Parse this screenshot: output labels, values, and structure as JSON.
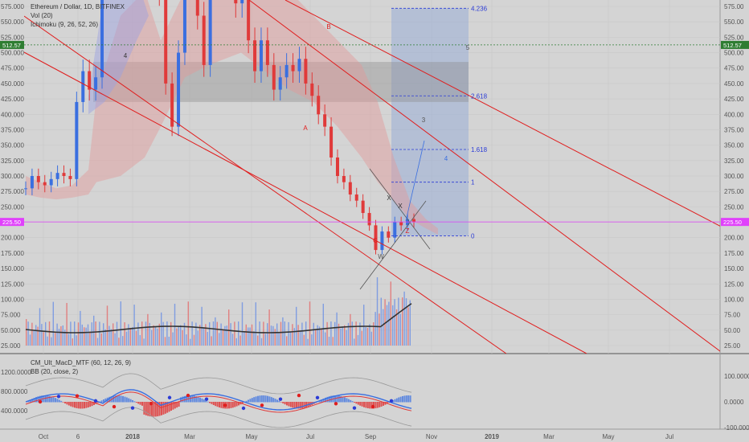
{
  "chart_data": {
    "type": "line",
    "title": "Ethereum / Dollar, 1D, BITFINEX",
    "indicators": [
      "Vol (20)",
      "Ichimoku (9, 26, 52, 26)"
    ],
    "lower_indicators": [
      "CM_Ult_MacD_MTF (60, 12, 26, 9)",
      "BB (20, close, 2)"
    ],
    "price_axis": {
      "ticks": [
        "575.00",
        "550.00",
        "525.00",
        "500.00",
        "475.00",
        "450.00",
        "425.00",
        "400.00",
        "375.00",
        "350.00",
        "325.00",
        "300.00",
        "275.00",
        "250.00",
        "225.00",
        "200.00",
        "175.00",
        "150.00",
        "125.00",
        "100.00",
        "75.00",
        "50.00",
        "25.00"
      ],
      "range": [
        12.5,
        582
      ]
    },
    "left_volume_ticks": [
      "575.000",
      "550.000",
      "525.000",
      "500.000",
      "475.000",
      "450.000",
      "425.000",
      "400.000",
      "375.000",
      "350.000",
      "325.000",
      "300.000",
      "275.000",
      "250.000",
      "225.000",
      "200.000",
      "175.000",
      "150.000",
      "125.000",
      "100.000",
      "75.000",
      "50.000",
      "25.000"
    ],
    "macd_axis": {
      "right_ticks": [
        "100.0000",
        "0.0000",
        "-100.0000"
      ],
      "left_ticks": [
        "1200.0000",
        "800.0000",
        "400.0000"
      ]
    },
    "x_axis_labels": [
      "Oct",
      "6",
      "2018",
      "Mar",
      "May",
      "Jul",
      "Sep",
      "Nov",
      "2019",
      "Mar",
      "May",
      "Jul"
    ],
    "price_markers": [
      {
        "value": 512.57,
        "label": "512.57",
        "color": "#2e7d32"
      },
      {
        "value": 225.5,
        "label": "225.50",
        "color": "#e040fb"
      }
    ],
    "fib_levels": [
      {
        "label": "4.236",
        "price": 572
      },
      {
        "label": "2.618",
        "price": 430
      },
      {
        "label": "1.618",
        "price": 343
      },
      {
        "label": "1",
        "price": 290
      },
      {
        "label": "0",
        "price": 203
      }
    ],
    "wave_labels": [
      "4",
      "B",
      "A",
      "5",
      "3",
      "4",
      "X",
      "X",
      "Z",
      "C",
      "W"
    ],
    "series": [
      {
        "name": "Ethereum / Dollar",
        "x": [
          0,
          1,
          2,
          3,
          4,
          5,
          6,
          7,
          8,
          9,
          10,
          11,
          12,
          13,
          14,
          15,
          16,
          17,
          18,
          19,
          20,
          21,
          22,
          23,
          24,
          25,
          26,
          27,
          28,
          29,
          30,
          31,
          32,
          33,
          34,
          35,
          36,
          37,
          38,
          39,
          40,
          41,
          42,
          43,
          44,
          45,
          46,
          47,
          48,
          49,
          50,
          51,
          52,
          53,
          54,
          55,
          56,
          57,
          58,
          59,
          60,
          61
        ],
        "values": [
          280,
          300,
          290,
          285,
          295,
          305,
          300,
          295,
          420,
          470,
          440,
          460,
          620,
          900,
          1200,
          850,
          1000,
          1100,
          900,
          700,
          820,
          600,
          450,
          380,
          500,
          700,
          650,
          560,
          480,
          640,
          740,
          700,
          640,
          580,
          600,
          520,
          470,
          520,
          480,
          440,
          460,
          480,
          470,
          490,
          450,
          430,
          400,
          380,
          330,
          300,
          290,
          270,
          260,
          240,
          220,
          180,
          210,
          200,
          225,
          220,
          230,
          225
        ]
      }
    ]
  }
}
